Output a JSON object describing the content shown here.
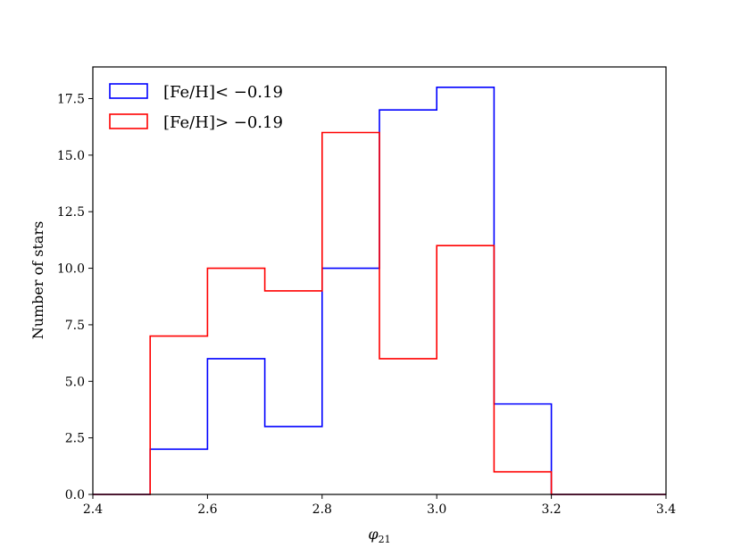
{
  "chart_data": {
    "type": "histogram-step",
    "xlabel": "φ21",
    "xlabel_main": "φ",
    "xlabel_sub": "21",
    "ylabel": "Number of stars",
    "xlim": [
      2.4,
      3.4
    ],
    "ylim": [
      0,
      18.9
    ],
    "xticks": [
      "2.4",
      "2.6",
      "2.8",
      "3.0",
      "3.2",
      "3.4"
    ],
    "yticks": [
      "0.0",
      "2.5",
      "5.0",
      "7.5",
      "10.0",
      "12.5",
      "15.0",
      "17.5"
    ],
    "bin_edges": [
      2.4,
      2.5,
      2.6,
      2.7,
      2.8,
      2.9,
      3.0,
      3.1,
      3.2,
      3.3,
      3.4
    ],
    "series": [
      {
        "name": "[Fe/H]< −0.19",
        "color": "#0000ff",
        "values": [
          0,
          2,
          6,
          3,
          10,
          17,
          18,
          4,
          0,
          0
        ]
      },
      {
        "name": "[Fe/H]> −0.19",
        "color": "#ff0000",
        "values": [
          0,
          7,
          10,
          9,
          16,
          6,
          11,
          1,
          0,
          0
        ]
      }
    ],
    "legend_position": "top-left",
    "grid": false
  }
}
